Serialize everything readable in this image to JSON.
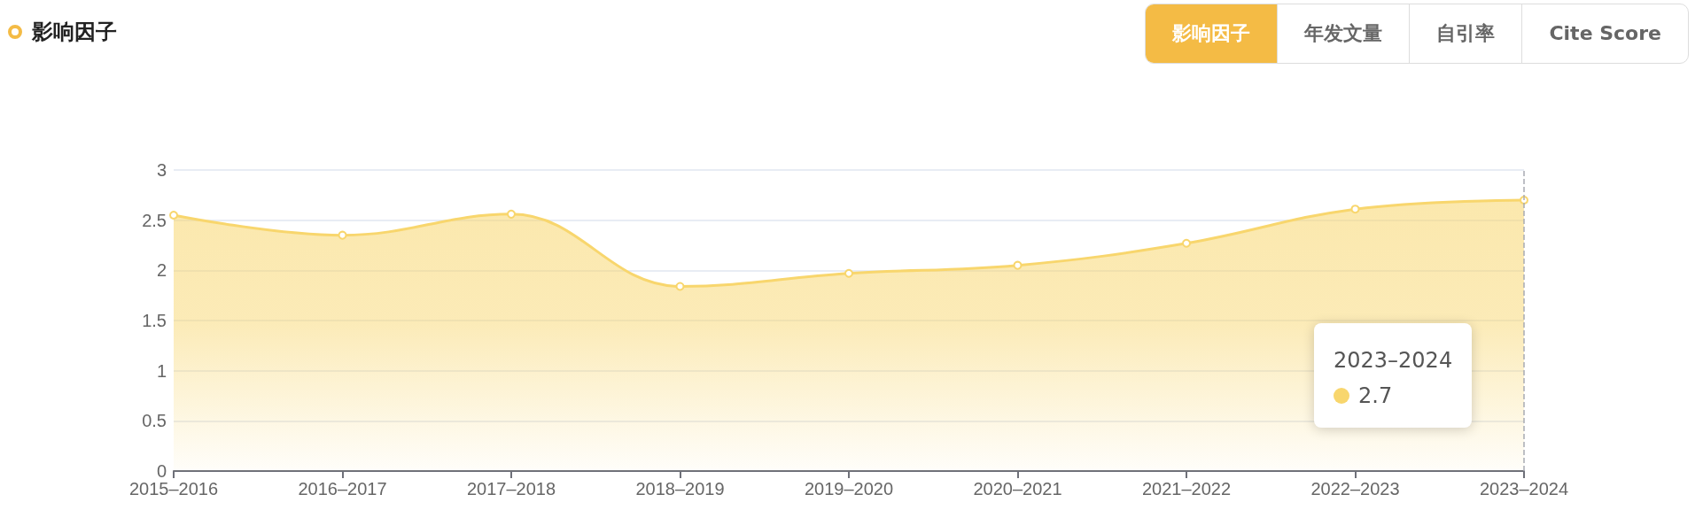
{
  "chart_data": {
    "type": "area",
    "title": "影响因子",
    "categories": [
      "2015–2016",
      "2016–2017",
      "2017–2018",
      "2018–2019",
      "2019–2020",
      "2020–2021",
      "2021–2022",
      "2022–2023",
      "2023–2024"
    ],
    "series": [
      {
        "color": "#f8d66d",
        "values": [
          2.55,
          2.35,
          2.56,
          1.84,
          1.97,
          2.05,
          2.27,
          2.61,
          2.7
        ]
      }
    ],
    "ylim": [
      0,
      3
    ],
    "yticks": [
      0,
      0.5,
      1,
      1.5,
      2,
      2.5,
      3
    ],
    "grid": "y",
    "marker": "circle",
    "ref_lines": [
      {
        "axis": "x",
        "value": "2023–2024",
        "color": "#a8abb3",
        "line_style": "dashed"
      }
    ],
    "annotations": [
      "影响因子",
      "年发文量",
      "自引率",
      "Cite Score",
      "2023–2024",
      "2.7"
    ]
  }
}
